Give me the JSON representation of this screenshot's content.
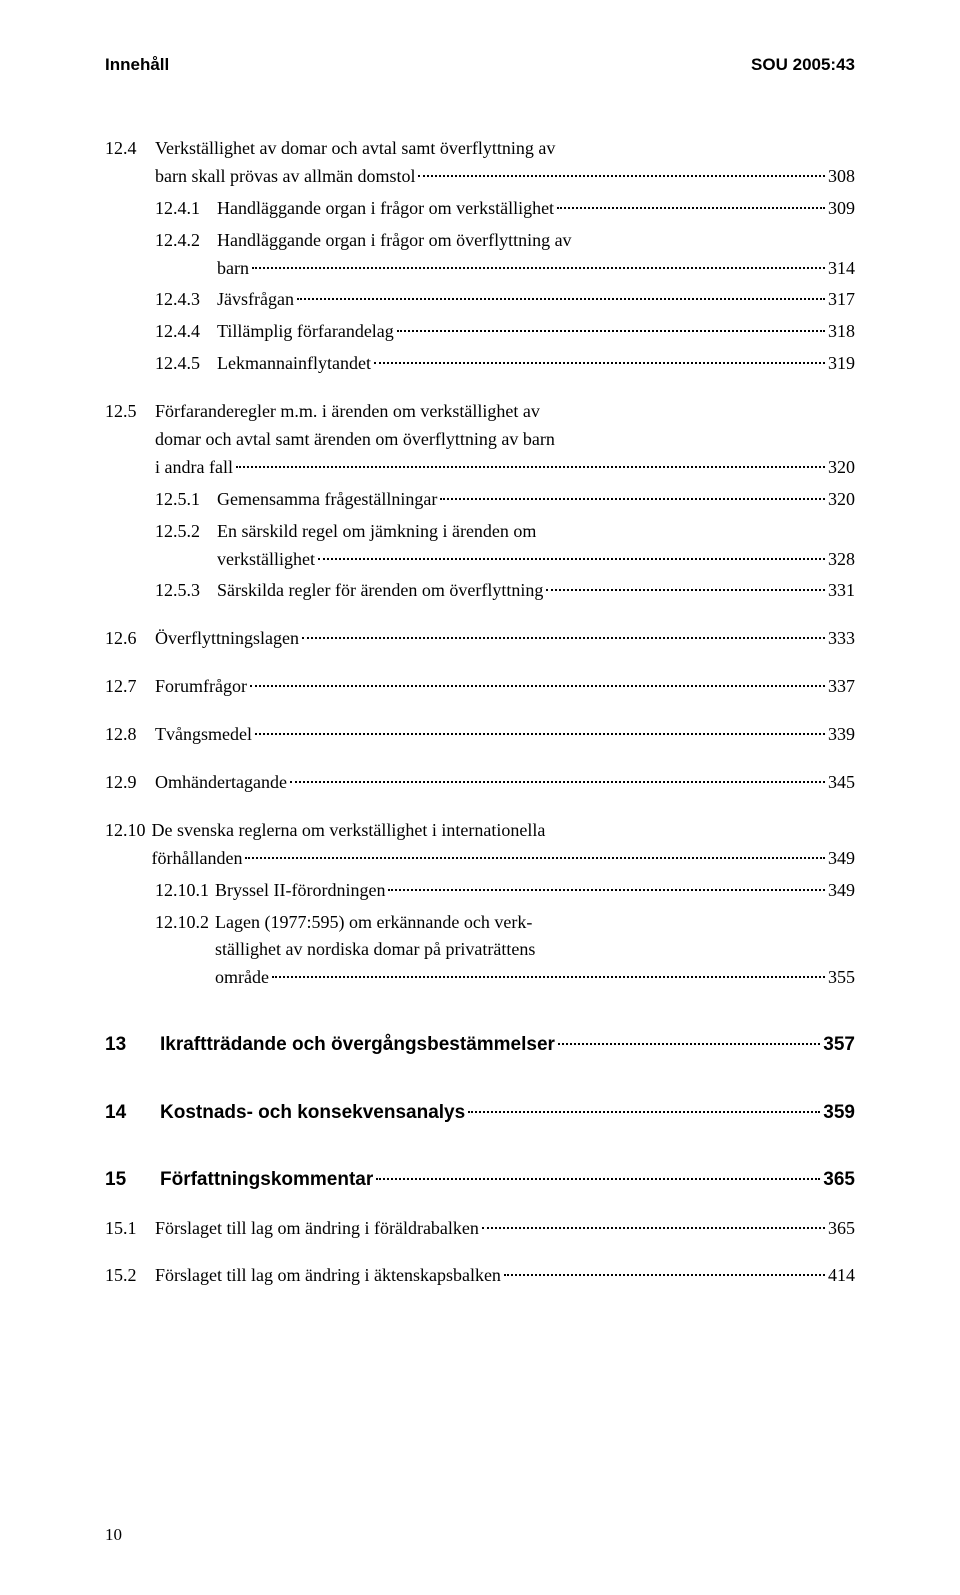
{
  "header": {
    "left": "Innehåll",
    "right": "SOU 2005:43"
  },
  "entries": [
    {
      "type": "main",
      "num": "12.4",
      "lines": [
        "Verkställighet av domar och avtal samt överflyttning av",
        "barn skall prövas av allmän domstol"
      ],
      "page": "308",
      "gap": false
    },
    {
      "type": "sub",
      "num": "12.4.1",
      "lines": [
        "Handläggande organ i frågor om verkställighet"
      ],
      "page": "309",
      "gap": false
    },
    {
      "type": "sub",
      "num": "12.4.2",
      "lines": [
        "Handläggande organ i frågor om överflyttning av",
        "barn"
      ],
      "page": "314",
      "gap": false
    },
    {
      "type": "sub",
      "num": "12.4.3",
      "lines": [
        "Jävsfrågan"
      ],
      "page": "317",
      "gap": false
    },
    {
      "type": "sub",
      "num": "12.4.4",
      "lines": [
        "Tillämplig förfarandelag"
      ],
      "page": "318",
      "gap": false
    },
    {
      "type": "sub",
      "num": "12.4.5",
      "lines": [
        "Lekmannainflytandet"
      ],
      "page": "319",
      "gap": false
    },
    {
      "type": "main",
      "num": "12.5",
      "lines": [
        "Förfaranderegler m.m. i ärenden om verkställighet av",
        "domar och avtal samt ärenden om överflyttning av barn",
        "i andra fall"
      ],
      "page": "320",
      "gap": true
    },
    {
      "type": "sub",
      "num": "12.5.1",
      "lines": [
        "Gemensamma frågeställningar"
      ],
      "page": "320",
      "gap": false
    },
    {
      "type": "sub",
      "num": "12.5.2",
      "lines": [
        "En särskild regel om jämkning i ärenden om",
        "verkställighet"
      ],
      "page": "328",
      "gap": false
    },
    {
      "type": "sub",
      "num": "12.5.3",
      "lines": [
        "Särskilda regler för ärenden om överflyttning"
      ],
      "page": "331",
      "gap": false
    },
    {
      "type": "main",
      "num": "12.6",
      "lines": [
        "Överflyttningslagen"
      ],
      "page": "333",
      "gap": true
    },
    {
      "type": "main",
      "num": "12.7",
      "lines": [
        "Forumfrågor"
      ],
      "page": "337",
      "gap": true
    },
    {
      "type": "main",
      "num": "12.8",
      "lines": [
        "Tvångsmedel"
      ],
      "page": "339",
      "gap": true
    },
    {
      "type": "main",
      "num": "12.9",
      "lines": [
        "Omhändertagande"
      ],
      "page": "345",
      "gap": true
    },
    {
      "type": "main",
      "num": "12.10",
      "lines": [
        "De svenska reglerna om verkställighet i internationella",
        "förhållanden"
      ],
      "page": "349",
      "gap": true,
      "tightnum": true
    },
    {
      "type": "sub",
      "num": "12.10.1",
      "lines": [
        "Bryssel II-förordningen"
      ],
      "page": "349",
      "gap": false,
      "tightnum": true
    },
    {
      "type": "sub",
      "num": "12.10.2",
      "lines": [
        "Lagen (1977:595) om erkännande och verk-",
        "ställighet av nordiska domar på privaträttens",
        "område"
      ],
      "page": "355",
      "gap": false,
      "tightnum": true
    },
    {
      "type": "bold",
      "num": "13",
      "lines": [
        "Ikraftträdande och övergångsbestämmelser"
      ],
      "page": "357",
      "gap": true,
      "biggap": true
    },
    {
      "type": "bold",
      "num": "14",
      "lines": [
        "Kostnads- och konsekvensanalys"
      ],
      "page": "359",
      "gap": true,
      "biggap": true
    },
    {
      "type": "bold",
      "num": "15",
      "lines": [
        "Författningskommentar"
      ],
      "page": "365",
      "gap": true,
      "biggap": true
    },
    {
      "type": "main",
      "num": "15.1",
      "lines": [
        "Förslaget till lag om ändring i föräldrabalken"
      ],
      "page": "365",
      "gap": true
    },
    {
      "type": "main",
      "num": "15.2",
      "lines": [
        "Förslaget till lag om ändring i äktenskapsbalken"
      ],
      "page": "414",
      "gap": true
    }
  ],
  "pageNumber": "10"
}
